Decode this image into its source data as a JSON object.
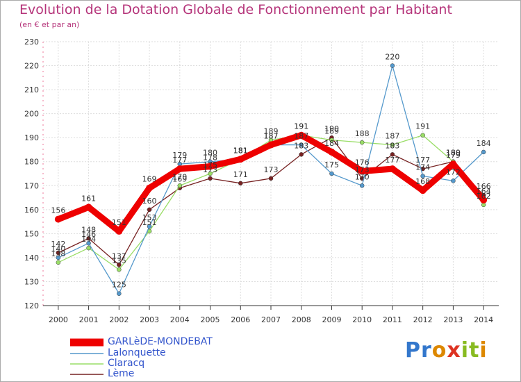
{
  "chart_data": {
    "type": "line",
    "title": "Evolution de la Dotation Globale de Fonctionnement par Habitant",
    "subtitle": "(en € et par an)",
    "xlabel": "",
    "ylabel": "",
    "categories": [
      "2000",
      "2001",
      "2002",
      "2003",
      "2004",
      "2005",
      "2006",
      "2007",
      "2008",
      "2009",
      "2010",
      "2011",
      "2012",
      "2013",
      "2014"
    ],
    "ylim": [
      120,
      230
    ],
    "yticks": [
      120,
      130,
      140,
      150,
      160,
      170,
      180,
      190,
      200,
      210,
      220,
      230
    ],
    "grid": true,
    "legend_position": "bottom-left",
    "series": [
      {
        "name": "GARLèDE-MONDEBAT",
        "color": "#ee0000",
        "values": [
          156,
          161,
          151,
          169,
          177,
          178,
          181,
          187,
          191,
          184,
          176,
          177,
          168,
          179,
          164
        ]
      },
      {
        "name": "Lalonquette",
        "color": "#5599cc",
        "values": [
          140,
          146,
          125,
          153,
          179,
          180,
          181,
          187,
          187,
          175,
          170,
          220,
          174,
          172,
          184
        ]
      },
      {
        "name": "Claracq",
        "color": "#99dd66",
        "values": [
          138,
          144,
          135,
          151,
          170,
          175,
          181,
          189,
          191,
          189,
          188,
          187,
          191,
          180,
          162
        ]
      },
      {
        "name": "Lème",
        "color": "#772222",
        "values": [
          142,
          148,
          137,
          160,
          169,
          173,
          171,
          173,
          183,
          190,
          173,
          183,
          177,
          180,
          166
        ]
      }
    ]
  },
  "logo": {
    "text": "Proxiti",
    "letters": [
      "P",
      "r",
      "o",
      "x",
      "i",
      "t",
      "i"
    ],
    "colors": [
      "#3377cc",
      "#3377cc",
      "#dd8800",
      "#dd3322",
      "#88bb22",
      "#88bb22",
      "#dd8800"
    ]
  }
}
